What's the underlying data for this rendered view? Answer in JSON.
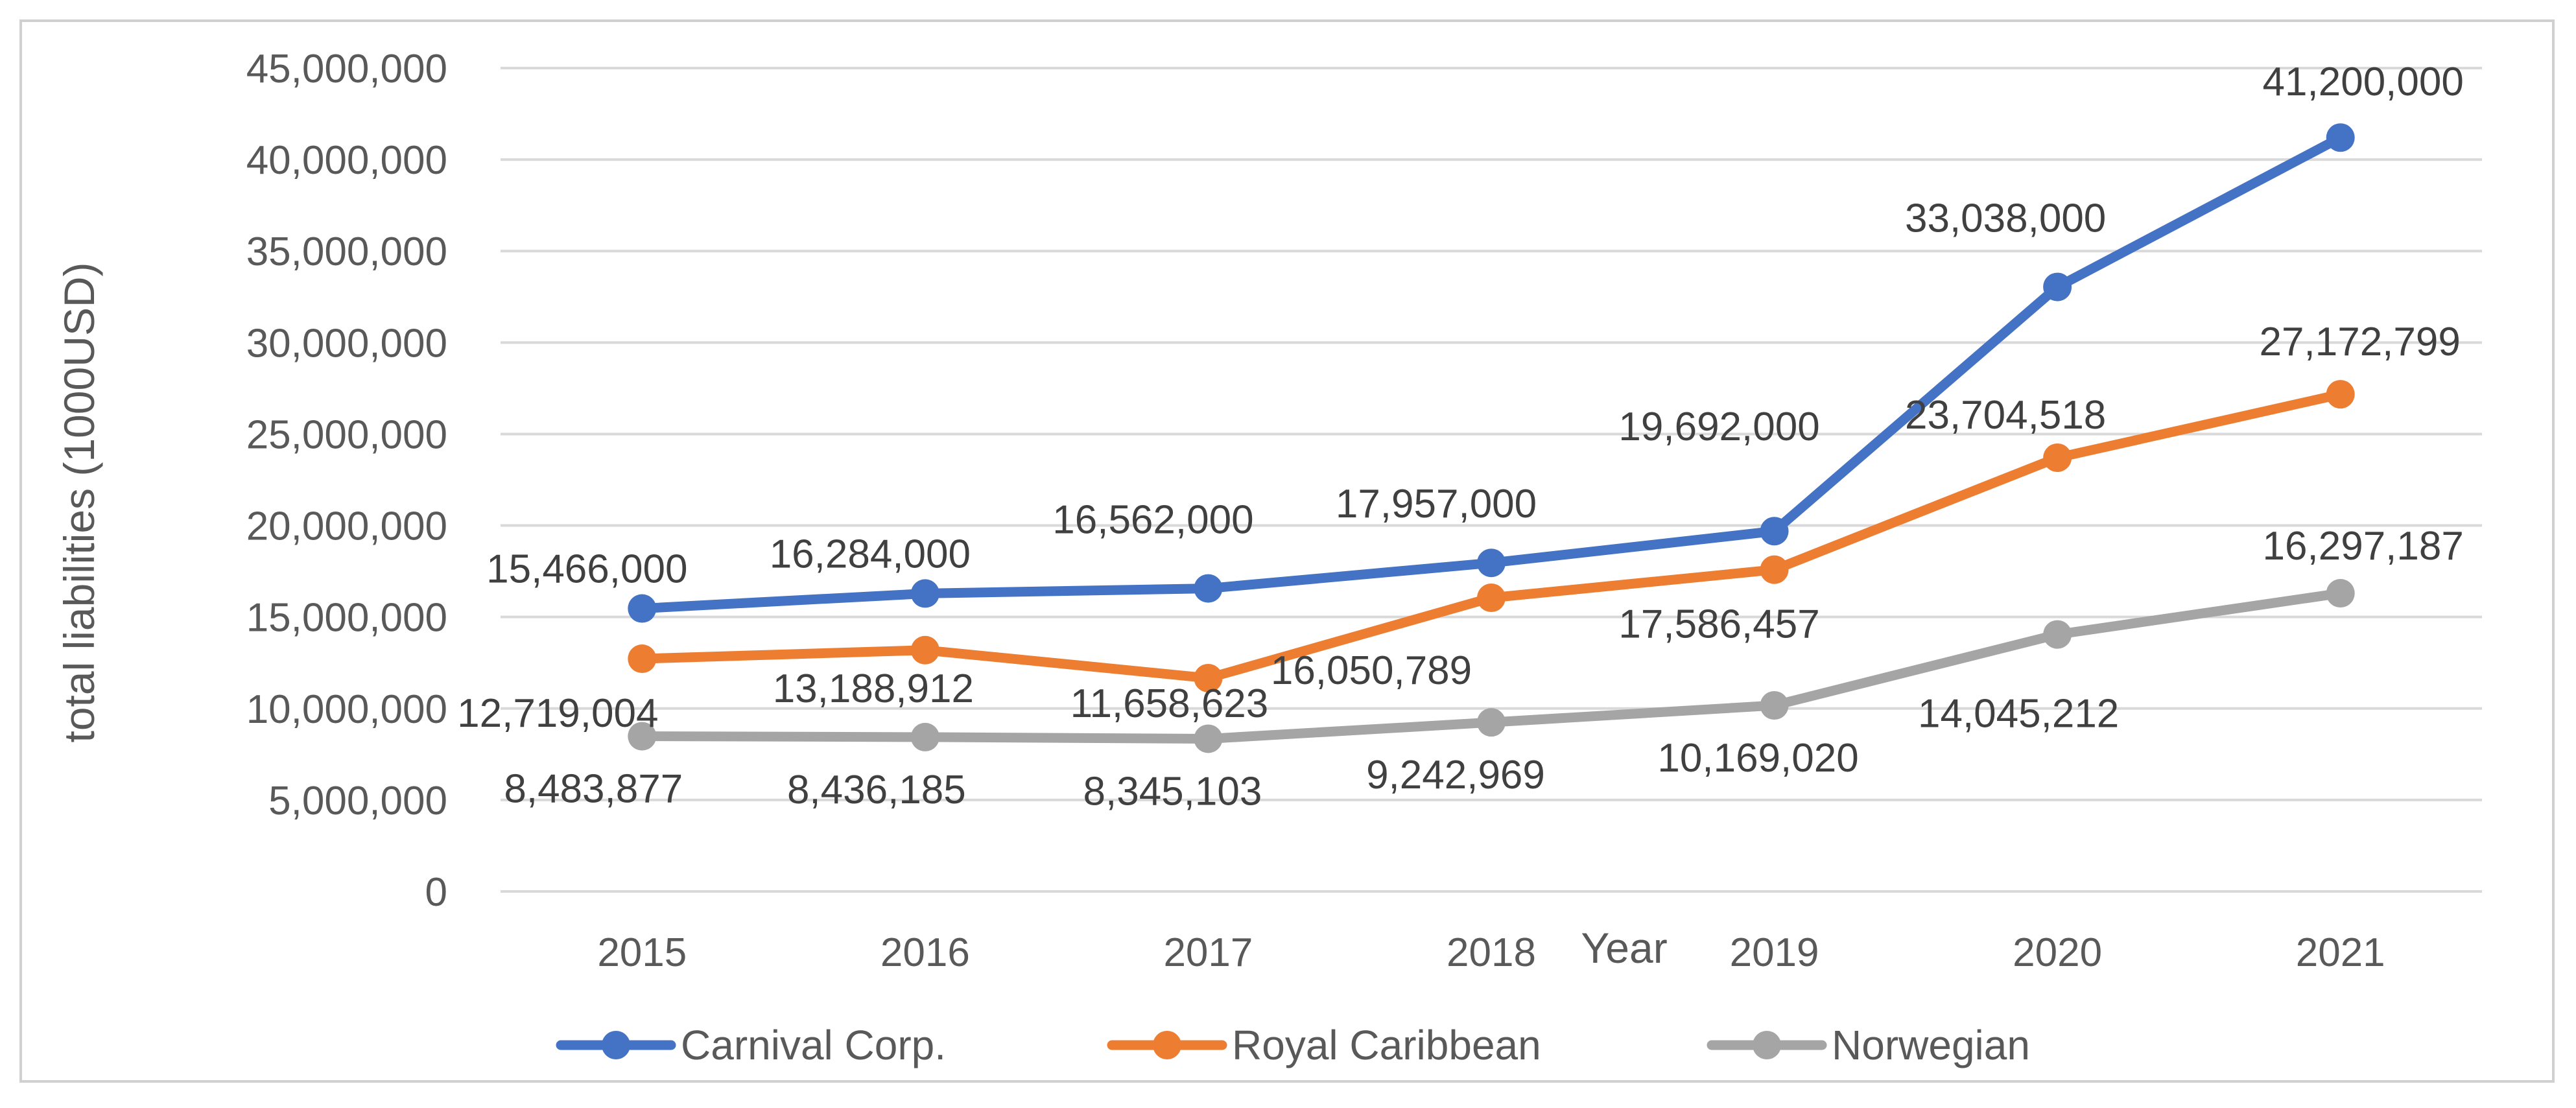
{
  "chart_data": {
    "type": "line",
    "title": "",
    "xlabel": "Year",
    "ylabel": "total liabilities (1000USD)",
    "categories": [
      "2015",
      "2016",
      "2017",
      "2018",
      "2019",
      "2020",
      "2021"
    ],
    "ylim": [
      0,
      45000000
    ],
    "yticks": [
      0,
      5000000,
      10000000,
      15000000,
      20000000,
      25000000,
      30000000,
      35000000,
      40000000,
      45000000
    ],
    "ytick_labels": [
      "0",
      "5,000,000",
      "10,000,000",
      "15,000,000",
      "20,000,000",
      "25,000,000",
      "30,000,000",
      "35,000,000",
      "40,000,000",
      "45,000,000"
    ],
    "grid": true,
    "legend_position": "bottom",
    "series": [
      {
        "name": "Carnival Corp.",
        "color": "#4472C4",
        "values": [
          15466000,
          16284000,
          16562000,
          17957000,
          19692000,
          33038000,
          41200000
        ],
        "labels": [
          "15,466,000",
          "16,284,000",
          "16,562,000",
          "17,957,000",
          "19,692,000",
          "33,038,000",
          "41,200,000"
        ]
      },
      {
        "name": "Royal Caribbean",
        "color": "#ED7D31",
        "values": [
          12719004,
          13188912,
          11658623,
          16050789,
          17586457,
          23704518,
          27172799
        ],
        "labels": [
          "12,719,004",
          "13,188,912",
          "11,658,623",
          "16,050,789",
          "17,586,457",
          "23,704,518",
          "27,172,799"
        ]
      },
      {
        "name": "Norwegian",
        "color": "#A5A5A5",
        "values": [
          8483877,
          8436185,
          8345103,
          9242969,
          10169020,
          14045212,
          16297187
        ],
        "labels": [
          "8,483,877",
          "8,436,185",
          "8,345,103",
          "9,242,969",
          "10,169,020",
          "14,045,212",
          "16,297,187"
        ]
      }
    ]
  }
}
